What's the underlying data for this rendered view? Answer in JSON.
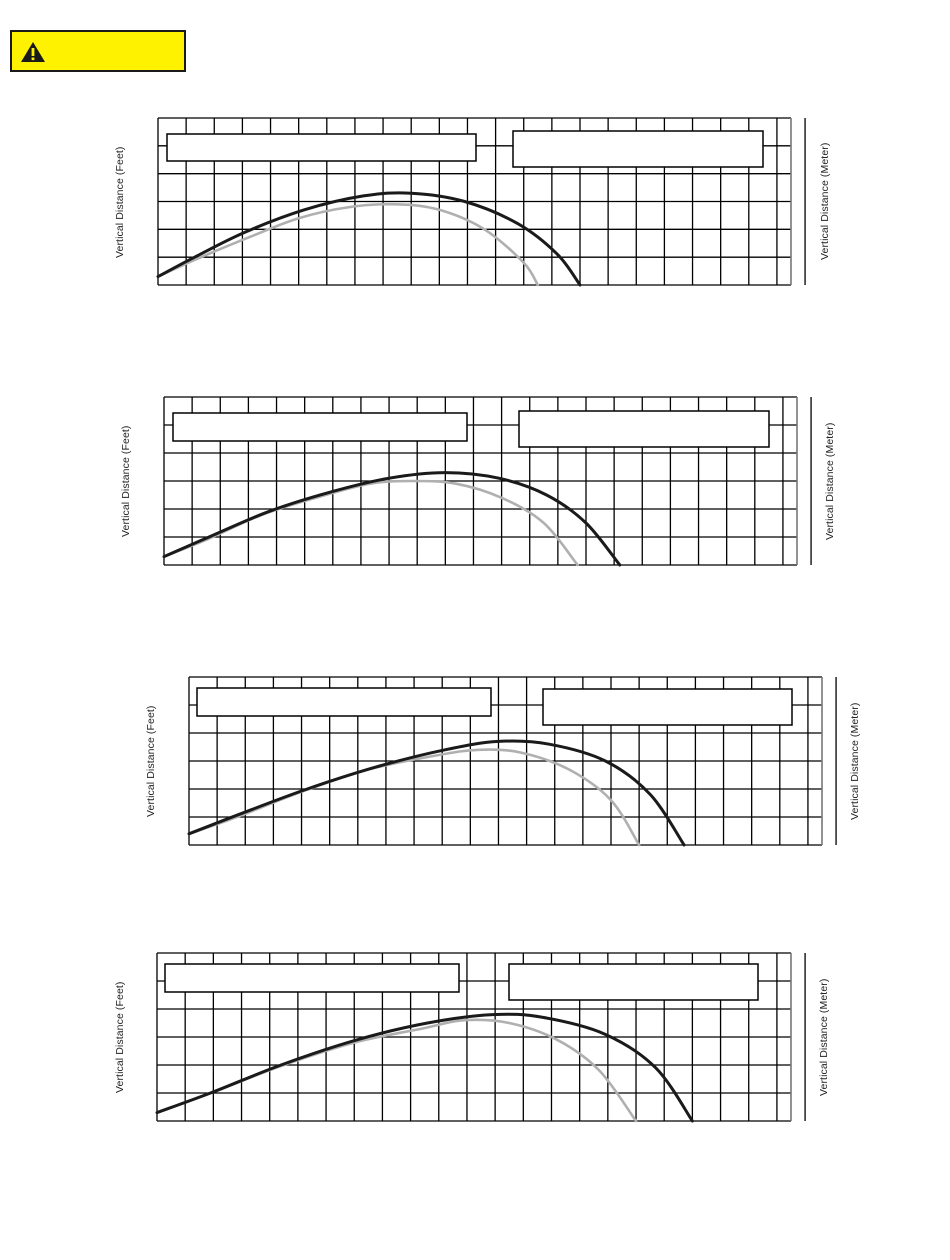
{
  "warning": {
    "icon": "warning-triangle-icon",
    "background": "#fff200"
  },
  "colors": {
    "dark_curve": "#1a1a1a",
    "light_curve": "#b0b0b0",
    "grid": "#000000"
  },
  "chart_data": [
    {
      "type": "line",
      "ylabel_left": "Vertical Distance (Feet)",
      "ylabel_right": "Vertical Distance (Meter)",
      "grid": true,
      "xlim": [
        0,
        22.5
      ],
      "ylim": [
        0,
        6
      ],
      "series": [
        {
          "color": "#1a1a1a",
          "x": [
            0,
            1.3,
            3.1,
            5.2,
            7.3,
            9.0,
            10.9,
            12.8,
            14.2,
            15.0
          ],
          "y": [
            0.3,
            1.0,
            1.9,
            2.7,
            3.2,
            3.3,
            3.0,
            2.2,
            1.1,
            0
          ]
        },
        {
          "color": "#b0b0b0",
          "x": [
            0,
            1.3,
            3.2,
            5.0,
            6.8,
            8.5,
            10.0,
            11.6,
            13.0,
            13.5
          ],
          "y": [
            0.3,
            0.9,
            1.7,
            2.4,
            2.8,
            2.9,
            2.7,
            2.0,
            0.8,
            0
          ]
        }
      ]
    },
    {
      "type": "line",
      "ylabel_left": "Vertical Distance (Feet)",
      "ylabel_right": "Vertical Distance (Meter)",
      "grid": true,
      "xlim": [
        0,
        22.5
      ],
      "ylim": [
        0,
        6
      ],
      "series": [
        {
          "color": "#1a1a1a",
          "x": [
            0,
            1.6,
            3.7,
            5.9,
            8.0,
            10.0,
            11.9,
            13.6,
            15.0,
            16.2
          ],
          "y": [
            0.3,
            1.0,
            1.9,
            2.6,
            3.1,
            3.3,
            3.1,
            2.5,
            1.5,
            0
          ]
        },
        {
          "color": "#b0b0b0",
          "x": [
            0,
            1.5,
            3.5,
            5.4,
            7.3,
            8.9,
            10.4,
            12.0,
            13.5,
            14.7
          ],
          "y": [
            0.3,
            0.9,
            1.8,
            2.4,
            2.9,
            3.0,
            2.9,
            2.4,
            1.5,
            0
          ]
        }
      ]
    },
    {
      "type": "line",
      "ylabel_left": "Vertical Distance (Feet)",
      "ylabel_right": "Vertical Distance (Meter)",
      "grid": true,
      "xlim": [
        0,
        22.5
      ],
      "ylim": [
        0,
        6
      ],
      "series": [
        {
          "color": "#1a1a1a",
          "x": [
            0,
            1.8,
            4.2,
            6.7,
            9.1,
            11.0,
            12.8,
            14.8,
            16.4,
            17.6
          ],
          "y": [
            0.4,
            1.1,
            2.0,
            2.8,
            3.4,
            3.7,
            3.6,
            3.0,
            1.8,
            0
          ]
        },
        {
          "color": "#b0b0b0",
          "x": [
            0,
            1.7,
            4.0,
            6.4,
            8.8,
            10.3,
            11.8,
            13.5,
            15.0,
            16.0
          ],
          "y": [
            0.4,
            1.0,
            1.9,
            2.7,
            3.2,
            3.4,
            3.3,
            2.7,
            1.6,
            0
          ]
        }
      ]
    },
    {
      "type": "line",
      "ylabel_left": "Vertical Distance (Feet)",
      "ylabel_right": "Vertical Distance (Meter)",
      "grid": true,
      "xlim": [
        0,
        22.5
      ],
      "ylim": [
        0,
        6
      ],
      "series": [
        {
          "color": "#1a1a1a",
          "x": [
            0,
            1.9,
            4.4,
            7.1,
            9.6,
            11.9,
            13.7,
            15.9,
            17.7,
            19.0
          ],
          "y": [
            0.3,
            1.0,
            2.0,
            2.9,
            3.5,
            3.8,
            3.7,
            3.1,
            1.9,
            0
          ]
        },
        {
          "color": "#b0b0b0",
          "x": [
            0,
            1.9,
            4.5,
            7.0,
            9.4,
            10.9,
            12.5,
            14.2,
            15.7,
            17.0
          ],
          "y": [
            0.3,
            1.0,
            2.0,
            2.8,
            3.3,
            3.6,
            3.5,
            2.9,
            1.8,
            0
          ]
        }
      ]
    }
  ]
}
